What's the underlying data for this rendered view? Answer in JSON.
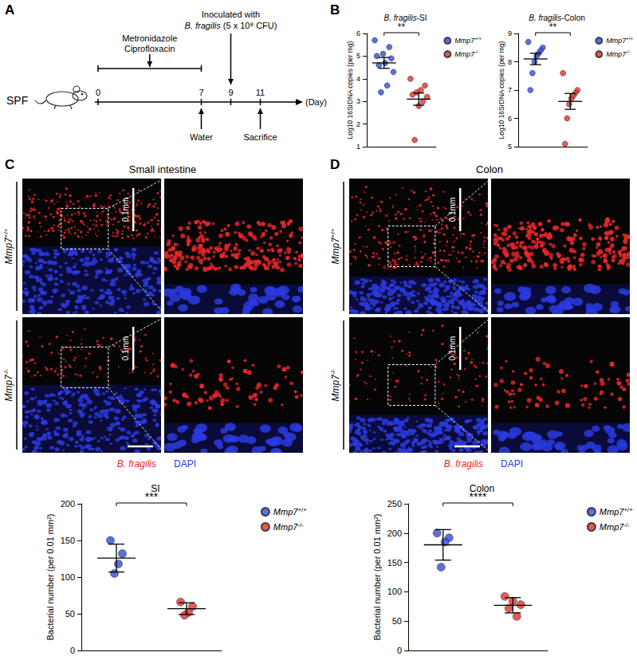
{
  "panel_labels": [
    "A",
    "B",
    "C",
    "D"
  ],
  "timeline": {
    "group": "SPF",
    "days": [
      0,
      7,
      9,
      11
    ],
    "unit_label": "(Day)",
    "above": [
      {
        "lines": [
          "Metronidazole",
          "Ciprofloxacin"
        ],
        "from": 0,
        "to": 7
      },
      {
        "lines": [
          "Inoculated with",
          "B. fragilis (5 x 10⁸ CFU)"
        ],
        "day": 9
      }
    ],
    "below": [
      {
        "lines": [
          "Water"
        ],
        "day": 7
      },
      {
        "lines": [
          "Sacrifice"
        ],
        "day": 11
      }
    ]
  },
  "micrographs": [
    {
      "title": "Small intestine",
      "rows": [
        "Mmp7+/+",
        "Mmp7-/-"
      ],
      "scale_bar": "0.1mm",
      "stains": [
        {
          "name": "B. fragilis",
          "color": "#e8262b"
        },
        {
          "name": "DAPI",
          "color": "#2a3be0"
        }
      ]
    },
    {
      "title": "Colon",
      "rows": [
        "Mmp7+/+",
        "Mmp7-/-"
      ],
      "scale_bar": "0.1mm",
      "stains": [
        {
          "name": "B. fragilis",
          "color": "#e8262b"
        },
        {
          "name": "DAPI",
          "color": "#2a3be0"
        }
      ]
    }
  ],
  "chart_data": [
    {
      "type": "scatter",
      "title": "B. fragilis-SI",
      "y_label": "Log10 16SrDNA copies (per mg)",
      "ylim": [
        1,
        6
      ],
      "yticks": [
        1,
        2,
        3,
        4,
        5,
        6
      ],
      "grid": false,
      "tick_labels": "y",
      "legend": "right",
      "annotations": [
        {
          "text": "**"
        }
      ],
      "series": [
        {
          "name": "Mmp7+/+",
          "color": "#2f4fd8",
          "values": [
            5.7,
            5.4,
            5.1,
            5.0,
            4.9,
            4.7,
            4.6,
            4.3,
            3.7,
            3.4
          ],
          "mean": 4.7,
          "error": 0.24
        },
        {
          "name": "Mmp7-/-",
          "color": "#e2302b",
          "values": [
            4.0,
            3.7,
            3.5,
            3.4,
            3.3,
            3.2,
            3.0,
            2.8,
            1.3
          ],
          "mean": 3.1,
          "error": 0.27
        }
      ]
    },
    {
      "type": "scatter",
      "title": "B. fragilis-Colon",
      "y_label": "Log10 16SrDNA copies (per mg)",
      "ylim": [
        5,
        9
      ],
      "yticks": [
        5,
        6,
        7,
        8,
        9
      ],
      "grid": false,
      "tick_labels": "y",
      "legend": "right",
      "annotations": [
        {
          "text": "**"
        }
      ],
      "series": [
        {
          "name": "Mmp7+/+",
          "color": "#2f4fd8",
          "values": [
            8.7,
            8.5,
            8.4,
            8.3,
            8.2,
            8.0,
            7.6,
            7.0
          ],
          "mean": 8.1,
          "error": 0.2
        },
        {
          "name": "Mmp7-/-",
          "color": "#e2302b",
          "values": [
            7.6,
            7.0,
            6.9,
            6.8,
            6.7,
            6.5,
            6.0,
            5.1
          ],
          "mean": 6.6,
          "error": 0.28
        }
      ]
    },
    {
      "type": "scatter",
      "title": "SI",
      "y_label": "Bacterial number (per 0.01 mm²)",
      "ylim": [
        0,
        200
      ],
      "yticks": [
        0,
        50,
        100,
        150,
        200
      ],
      "grid": false,
      "tick_labels": "y",
      "legend": "right",
      "annotations": [
        {
          "text": "***"
        }
      ],
      "series": [
        {
          "name": "Mmp7+/+",
          "color": "#2f4fd8",
          "values": [
            150,
            132,
            118,
            105
          ],
          "mean": 126,
          "error": 19
        },
        {
          "name": "Mmp7-/-",
          "color": "#e2302b",
          "values": [
            66,
            60,
            52,
            48
          ],
          "mean": 57,
          "error": 8
        }
      ]
    },
    {
      "type": "scatter",
      "title": "Colon",
      "y_label": "Bacterial number (per 0.01 mm²)",
      "ylim": [
        0,
        250
      ],
      "yticks": [
        0,
        50,
        100,
        150,
        200,
        250
      ],
      "grid": false,
      "tick_labels": "y",
      "legend": "right",
      "annotations": [
        {
          "text": "****"
        }
      ],
      "series": [
        {
          "name": "Mmp7+/+",
          "color": "#2f4fd8",
          "values": [
            200,
            192,
            185,
            142
          ],
          "mean": 180,
          "error": 26
        },
        {
          "name": "Mmp7-/-",
          "color": "#e2302b",
          "values": [
            92,
            84,
            78,
            72,
            58
          ],
          "mean": 77,
          "error": 13
        }
      ]
    }
  ]
}
